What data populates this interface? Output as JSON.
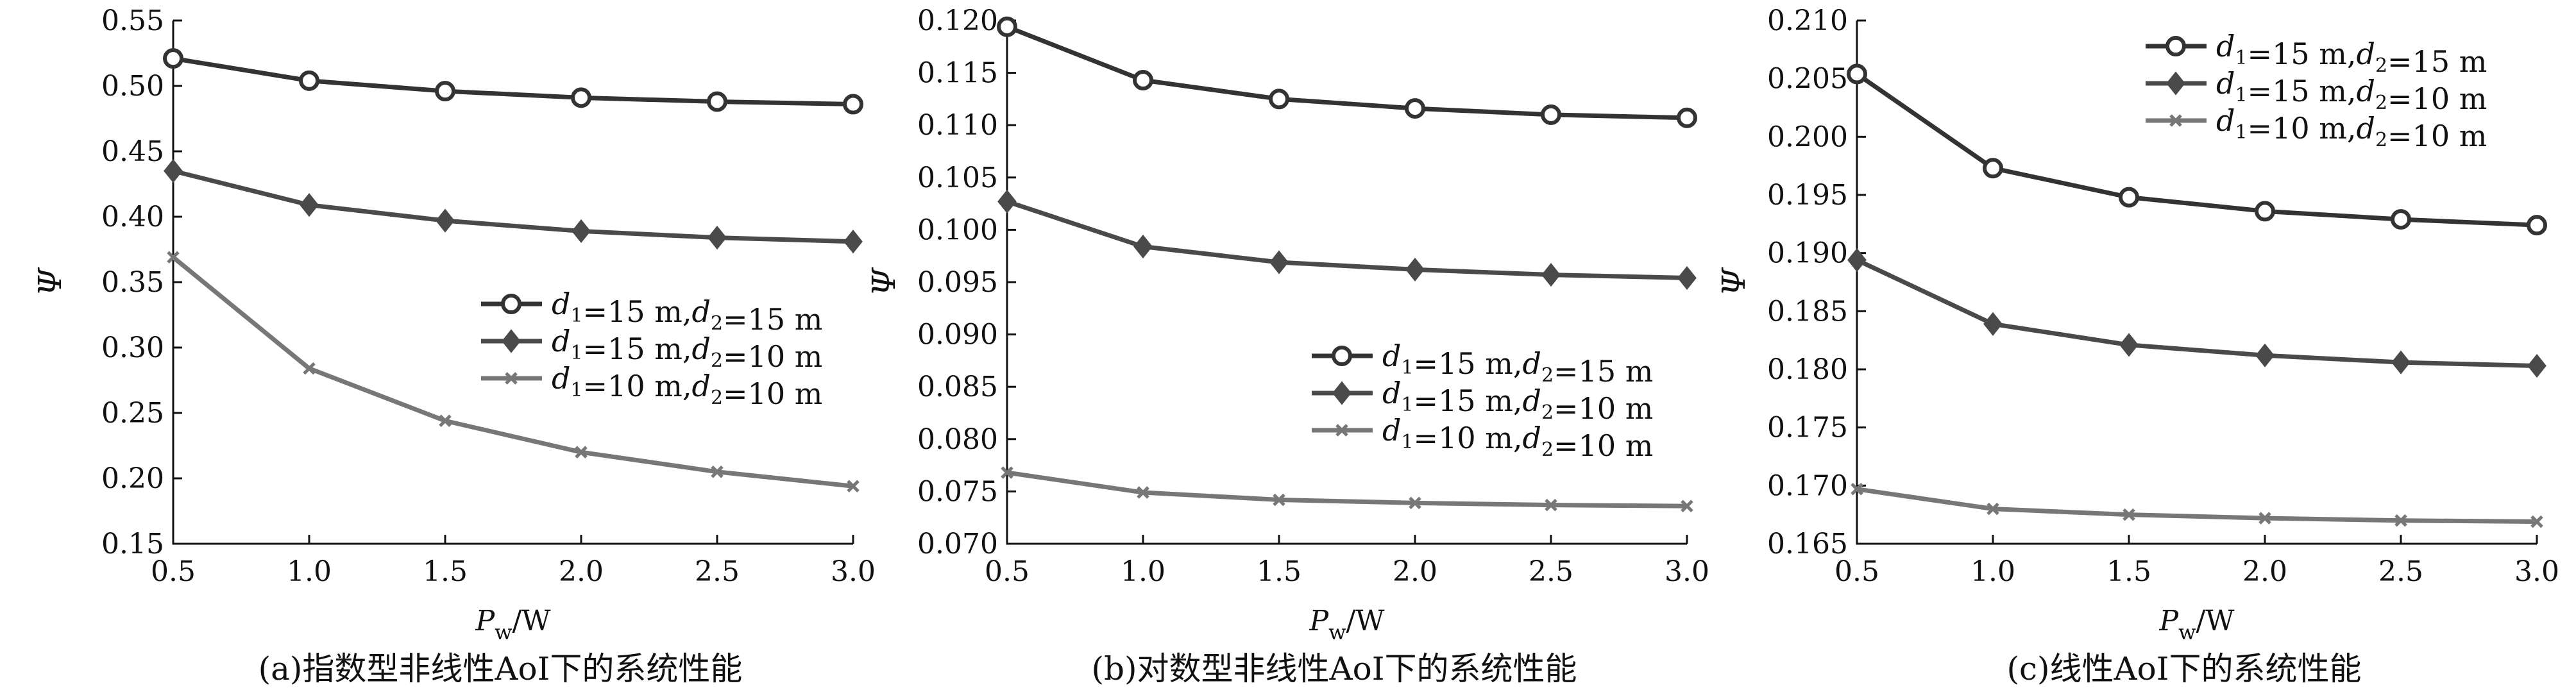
{
  "chart_data": [
    {
      "type": "line",
      "title": "(a)指数型非线性AoI下的系统性能",
      "xlabel": "Pw/W",
      "ylabel": "Ψ",
      "x": [
        0.5,
        1.0,
        1.5,
        2.0,
        2.5,
        3.0
      ],
      "xticks": [
        "0.5",
        "1.0",
        "1.5",
        "2.0",
        "2.5",
        "3.0"
      ],
      "xlim": [
        0.5,
        3.0
      ],
      "ylim": [
        0.15,
        0.55
      ],
      "yticks": [
        "0.15",
        "0.20",
        "0.25",
        "0.30",
        "0.35",
        "0.40",
        "0.45",
        "0.50",
        "0.55"
      ],
      "legend_position": "center-right",
      "series": [
        {
          "name": "d1=15 m,d2=15 m",
          "marker": "circle",
          "color": "#333333",
          "values": [
            0.521,
            0.504,
            0.496,
            0.491,
            0.488,
            0.486
          ]
        },
        {
          "name": "d1=15 m,d2=10 m",
          "marker": "diamond",
          "color": "#4a4a4a",
          "values": [
            0.435,
            0.409,
            0.397,
            0.389,
            0.384,
            0.381
          ]
        },
        {
          "name": "d1=10 m,d2=10 m",
          "marker": "x",
          "color": "#777777",
          "values": [
            0.369,
            0.284,
            0.244,
            0.22,
            0.205,
            0.194
          ]
        }
      ]
    },
    {
      "type": "line",
      "title": "(b)对数型非线性AoI下的系统性能",
      "xlabel": "Pw/W",
      "ylabel": "Ψ",
      "x": [
        0.5,
        1.0,
        1.5,
        2.0,
        2.5,
        3.0
      ],
      "xticks": [
        "0.5",
        "1.0",
        "1.5",
        "2.0",
        "2.5",
        "3.0"
      ],
      "xlim": [
        0.5,
        3.0
      ],
      "ylim": [
        0.07,
        0.12
      ],
      "yticks": [
        "0.070",
        "0.075",
        "0.080",
        "0.085",
        "0.090",
        "0.095",
        "0.100",
        "0.105",
        "0.110",
        "0.115",
        "0.120"
      ],
      "legend_position": "lower-right",
      "series": [
        {
          "name": "d1=15 m,d2=15 m",
          "marker": "circle",
          "color": "#333333",
          "values": [
            0.1194,
            0.1143,
            0.1125,
            0.1116,
            0.111,
            0.1107
          ]
        },
        {
          "name": "d1=15 m,d2=10 m",
          "marker": "diamond",
          "color": "#4a4a4a",
          "values": [
            0.1027,
            0.0984,
            0.0969,
            0.0962,
            0.0957,
            0.0954
          ]
        },
        {
          "name": "d1=10 m,d2=10 m",
          "marker": "x",
          "color": "#777777",
          "values": [
            0.0768,
            0.0749,
            0.0742,
            0.0739,
            0.0737,
            0.0736
          ]
        }
      ]
    },
    {
      "type": "line",
      "title": "(c)线性AoI下的系统性能",
      "xlabel": "Pw/W",
      "ylabel": "Ψ",
      "x": [
        0.5,
        1.0,
        1.5,
        2.0,
        2.5,
        3.0
      ],
      "xticks": [
        "0.5",
        "1.0",
        "1.5",
        "2.0",
        "2.5",
        "3.0"
      ],
      "xlim": [
        0.5,
        3.0
      ],
      "ylim": [
        0.165,
        0.21
      ],
      "yticks": [
        "0.165",
        "0.170",
        "0.175",
        "0.180",
        "0.185",
        "0.190",
        "0.195",
        "0.200",
        "0.205",
        "0.210"
      ],
      "legend_position": "top-right",
      "series": [
        {
          "name": "d1=15 m,d2=15 m",
          "marker": "circle",
          "color": "#333333",
          "values": [
            0.2054,
            0.1973,
            0.1948,
            0.1936,
            0.1929,
            0.1924
          ]
        },
        {
          "name": "d1=15 m,d2=10 m",
          "marker": "diamond",
          "color": "#4a4a4a",
          "values": [
            0.1894,
            0.1839,
            0.1821,
            0.1812,
            0.1806,
            0.1803
          ]
        },
        {
          "name": "d1=10 m,d2=10 m",
          "marker": "x",
          "color": "#777777",
          "values": [
            0.1697,
            0.168,
            0.1675,
            0.1672,
            0.167,
            0.1669
          ]
        }
      ]
    }
  ]
}
